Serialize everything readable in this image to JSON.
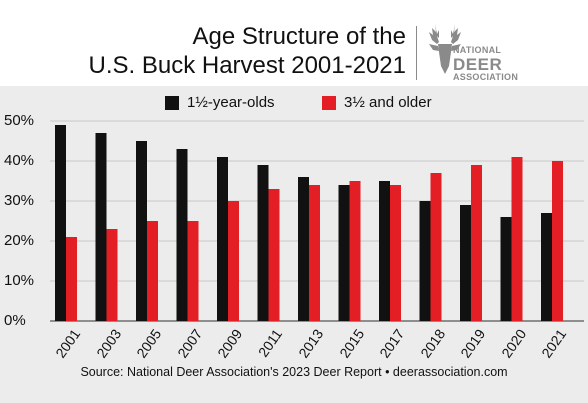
{
  "chart_data": {
    "type": "bar",
    "title_line1": "Age Structure of the",
    "title_line2": "U.S. Buck Harvest 2001-2021",
    "categories": [
      "2001",
      "2003",
      "2005",
      "2007",
      "2009",
      "2011",
      "2013",
      "2015",
      "2017",
      "2018",
      "2019",
      "2020",
      "2021"
    ],
    "series": [
      {
        "name": "1½-year-olds",
        "color": "#111111",
        "values": [
          49,
          47,
          45,
          43,
          41,
          39,
          36,
          34,
          35,
          30,
          29,
          26,
          27
        ]
      },
      {
        "name": "3½ and older",
        "color": "#e31e24",
        "values": [
          21,
          23,
          25,
          25,
          30,
          33,
          34,
          35,
          34,
          37,
          39,
          41,
          40
        ]
      }
    ],
    "yticks": [
      "50%",
      "40%",
      "30%",
      "20%",
      "10%",
      "0%"
    ],
    "ylim": [
      0,
      50
    ],
    "grid": true,
    "legend_position": "top"
  },
  "logo": {
    "name": "deer-icon",
    "line1": "NATIONAL",
    "line2": "DEER",
    "line3": "ASSOCIATION"
  },
  "source": "Source: National Deer Association's 2023 Deer Report • deerassociation.com"
}
